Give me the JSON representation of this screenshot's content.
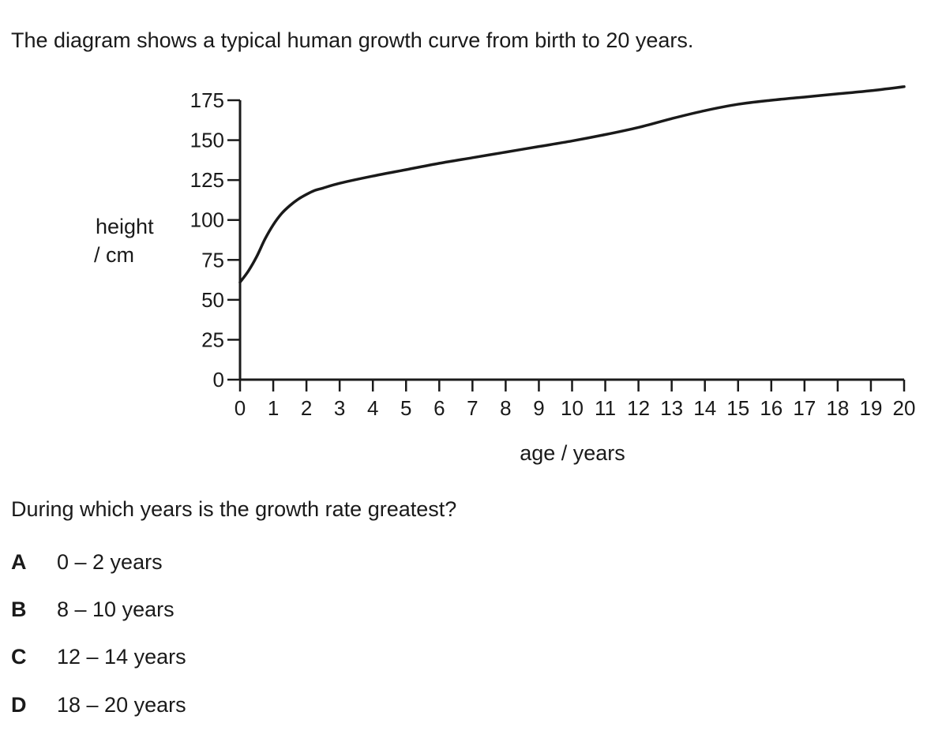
{
  "intro": "The diagram shows a typical human growth curve from birth to 20 years.",
  "question": "During which years is the growth rate greatest?",
  "options": [
    {
      "letter": "A",
      "text": "0 – 2 years"
    },
    {
      "letter": "B",
      "text": "8 – 10 years"
    },
    {
      "letter": "C",
      "text": "12 – 14 years"
    },
    {
      "letter": "D",
      "text": "18 – 20 years"
    }
  ],
  "chart_data": {
    "type": "line",
    "title": "",
    "ylabel_line1": "height",
    "ylabel_line2": "/ cm",
    "xlabel": "age / years",
    "xlim": [
      0,
      20
    ],
    "ylim": [
      0,
      175
    ],
    "xticks": [
      0,
      1,
      2,
      3,
      4,
      5,
      6,
      7,
      8,
      9,
      10,
      11,
      12,
      13,
      14,
      15,
      16,
      17,
      18,
      19,
      20
    ],
    "yticks": [
      0,
      25,
      50,
      75,
      100,
      125,
      150,
      175
    ],
    "grid": false,
    "line_color": "#1a1a1a",
    "series": [
      {
        "x": [
          0,
          0.25,
          0.5,
          0.75,
          1,
          1.25,
          1.5,
          1.75,
          2,
          2.25,
          2.5,
          3,
          4,
          5,
          6,
          7,
          8,
          9,
          10,
          11,
          12,
          13,
          14,
          15,
          16,
          17,
          18,
          19,
          20
        ],
        "y": [
          61,
          68,
          77,
          88,
          97,
          104,
          109,
          113,
          116,
          118.5,
          120,
          123,
          127.5,
          131.5,
          135.5,
          139,
          142.5,
          146,
          149.5,
          153.5,
          158,
          163.5,
          168.5,
          172.5,
          175,
          177,
          179,
          181,
          183.5
        ]
      }
    ]
  }
}
